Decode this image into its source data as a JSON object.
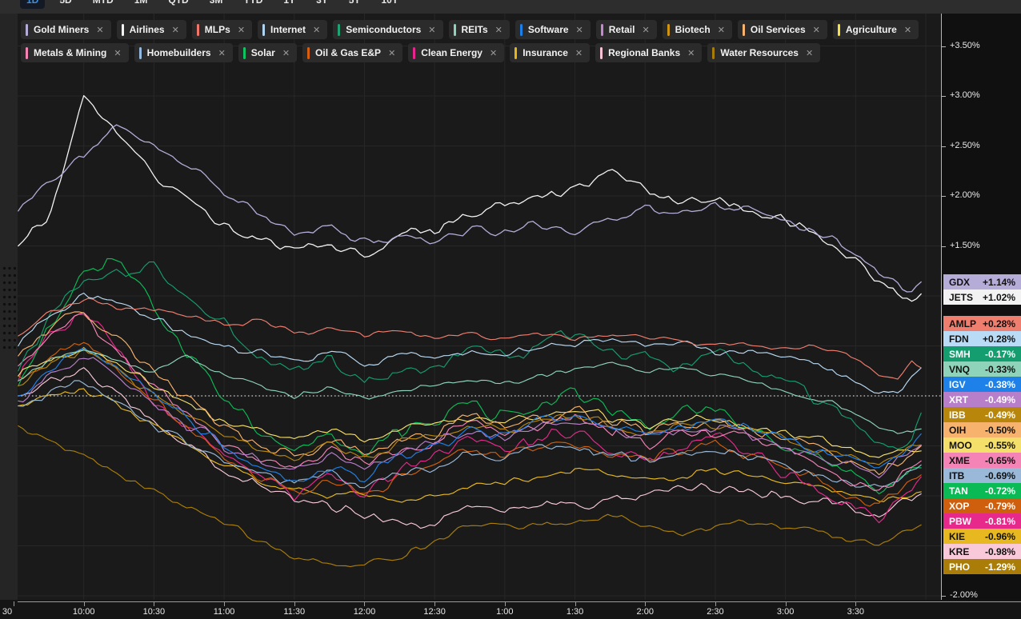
{
  "toolbar": {
    "tabs": [
      {
        "label": "1D",
        "active": true
      },
      {
        "label": "5D",
        "active": false
      },
      {
        "label": "MTD",
        "active": false
      },
      {
        "label": "1M",
        "active": false
      },
      {
        "label": "QTD",
        "active": false
      },
      {
        "label": "3M",
        "active": false
      },
      {
        "label": "YTD",
        "active": false
      },
      {
        "label": "1Y",
        "active": false
      },
      {
        "label": "3Y",
        "active": false
      },
      {
        "label": "5Y",
        "active": false
      },
      {
        "label": "10Y",
        "active": false
      }
    ]
  },
  "chips": [
    {
      "label": "Gold Miners",
      "color": "#b4abd6",
      "row": 1
    },
    {
      "label": "Airlines",
      "color": "#f5f5f5",
      "row": 1
    },
    {
      "label": "MLPs",
      "color": "#f0766b",
      "row": 1
    },
    {
      "label": "Internet",
      "color": "#aed4f2",
      "row": 1
    },
    {
      "label": "Semiconductors",
      "color": "#1ea472",
      "row": 1
    },
    {
      "label": "REITs",
      "color": "#8ed3bb",
      "row": 1
    },
    {
      "label": "Software",
      "color": "#1b7fe8",
      "row": 1
    },
    {
      "label": "Retail",
      "color": "#c587cf",
      "row": 1
    },
    {
      "label": "Biotech",
      "color": "#cf9410",
      "row": 1
    },
    {
      "label": "Oil Services",
      "color": "#f7b26d",
      "row": 1
    },
    {
      "label": "Agriculture",
      "color": "#f6e049",
      "row": 1
    },
    {
      "label": "Metals & Mining",
      "color": "#f583b4",
      "row": 2
    },
    {
      "label": "Homebuilders",
      "color": "#93bade",
      "row": 2
    },
    {
      "label": "Solar",
      "color": "#0ec561",
      "row": 2
    },
    {
      "label": "Oil & Gas E&P",
      "color": "#d95f10",
      "row": 2
    },
    {
      "label": "Clean Energy",
      "color": "#e8248e",
      "row": 2
    },
    {
      "label": "Insurance",
      "color": "#e7b518",
      "row": 2
    },
    {
      "label": "Regional Banks",
      "color": "#f9c4d6",
      "row": 2
    },
    {
      "label": "Water Resources",
      "color": "#a87c08",
      "row": 2
    }
  ],
  "chip_close_glyph": "✕",
  "chart_data": {
    "type": "line",
    "x_unit": "time of day (9:30 – 4:00)",
    "y_unit": "% change",
    "y_axis": {
      "min": -2.0,
      "max": 3.5,
      "step": 0.5,
      "grid": true,
      "zero_line": "white dotted",
      "visible_labels": [
        {
          "label": "+3.50%",
          "pct": 3.5
        },
        {
          "label": "+3.00%",
          "pct": 3.0
        },
        {
          "label": "+2.50%",
          "pct": 2.5
        },
        {
          "label": "+2.00%",
          "pct": 2.0
        },
        {
          "label": "+1.50%",
          "pct": 1.5
        },
        {
          "label": "-2.00%",
          "pct": -2.0
        }
      ]
    },
    "x_ticks": [
      {
        "label": "30",
        "m": 0,
        "lx": 9
      },
      {
        "label": "10:00",
        "m": 30
      },
      {
        "label": "10:30",
        "m": 60
      },
      {
        "label": "11:00",
        "m": 90
      },
      {
        "label": "11:30",
        "m": 120
      },
      {
        "label": "12:00",
        "m": 150
      },
      {
        "label": "12:30",
        "m": 180
      },
      {
        "label": "1:00",
        "m": 210
      },
      {
        "label": "1:30",
        "m": 240
      },
      {
        "label": "2:00",
        "m": 270
      },
      {
        "label": "2:30",
        "m": 300
      },
      {
        "label": "3:00",
        "m": 330
      },
      {
        "label": "3:30",
        "m": 360
      }
    ],
    "keypoint_minutes": [
      2,
      15,
      30,
      45,
      60,
      75,
      90,
      105,
      120,
      135,
      150,
      165,
      180,
      195,
      210,
      225,
      240,
      255,
      270,
      285,
      300,
      315,
      330,
      345,
      360,
      370,
      378,
      384,
      388
    ],
    "series": [
      {
        "symbol": "GDX",
        "change": "+1.14%",
        "pct": 1.14,
        "color": "#b5acd8",
        "text": "dark",
        "vol": 0.04,
        "values": [
          1.85,
          2.15,
          2.4,
          2.72,
          2.5,
          2.3,
          2.05,
          1.8,
          1.62,
          1.7,
          1.52,
          1.62,
          1.55,
          1.68,
          1.62,
          1.72,
          1.65,
          1.78,
          1.88,
          1.8,
          1.92,
          1.85,
          1.78,
          1.62,
          1.45,
          1.28,
          1.15,
          1.05,
          1.14
        ]
      },
      {
        "symbol": "JETS",
        "change": "+1.02%",
        "pct": 1.02,
        "color": "#f2f2f2",
        "text": "dark",
        "vol": 0.05,
        "values": [
          1.5,
          1.8,
          3.0,
          2.6,
          2.25,
          1.95,
          1.7,
          1.55,
          1.45,
          1.5,
          1.4,
          1.58,
          1.65,
          1.78,
          1.92,
          2.0,
          2.05,
          2.2,
          2.05,
          1.95,
          1.9,
          1.85,
          1.78,
          1.6,
          1.38,
          1.18,
          1.0,
          0.92,
          1.02
        ]
      },
      {
        "symbol": "AMLP",
        "change": "+0.28%",
        "pct": 0.28,
        "color": "#ef7e6f",
        "text": "dark",
        "vol": 0.025,
        "values": [
          0.6,
          0.85,
          0.95,
          0.9,
          0.85,
          0.8,
          0.72,
          0.75,
          0.62,
          0.68,
          0.6,
          0.64,
          0.6,
          0.63,
          0.58,
          0.61,
          0.56,
          0.6,
          0.62,
          0.56,
          0.52,
          0.54,
          0.48,
          0.5,
          0.35,
          0.22,
          0.18,
          0.32,
          0.28
        ]
      },
      {
        "symbol": "FDN",
        "change": "+0.28%",
        "pct": 0.28,
        "color": "#badbf5",
        "text": "dark",
        "vol": 0.035,
        "values": [
          0.5,
          0.8,
          1.0,
          0.9,
          0.75,
          0.6,
          0.5,
          0.42,
          0.35,
          0.42,
          0.33,
          0.42,
          0.38,
          0.46,
          0.42,
          0.5,
          0.52,
          0.56,
          0.5,
          0.52,
          0.45,
          0.48,
          0.38,
          0.3,
          0.15,
          0.02,
          0.05,
          0.2,
          0.28
        ]
      },
      {
        "symbol": "SMH",
        "change": "-0.17%",
        "pct": -0.17,
        "color": "#149d6f",
        "text": "light",
        "vol": 0.06,
        "values": [
          0.25,
          0.75,
          1.1,
          1.2,
          1.3,
          0.95,
          0.7,
          0.45,
          0.25,
          0.4,
          0.1,
          0.25,
          0.32,
          0.48,
          0.38,
          0.52,
          0.62,
          0.48,
          0.38,
          0.32,
          0.38,
          0.28,
          0.12,
          -0.05,
          -0.25,
          -0.45,
          -0.55,
          -0.4,
          -0.17
        ]
      },
      {
        "symbol": "VNQ",
        "change": "-0.33%",
        "pct": -0.33,
        "color": "#8ed3ba",
        "text": "dark",
        "vol": 0.025,
        "values": [
          0.15,
          0.35,
          0.45,
          0.35,
          0.25,
          0.4,
          0.2,
          0.1,
          0.0,
          0.08,
          -0.02,
          0.05,
          0.1,
          0.18,
          0.12,
          0.2,
          0.28,
          0.32,
          0.25,
          0.28,
          0.22,
          0.15,
          0.05,
          -0.05,
          -0.18,
          -0.3,
          -0.38,
          -0.35,
          -0.33
        ]
      },
      {
        "symbol": "IGV",
        "change": "-0.38%",
        "pct": -0.38,
        "color": "#1e81ea",
        "text": "light",
        "vol": 0.04,
        "values": [
          0.0,
          0.25,
          0.45,
          0.25,
          0.0,
          -0.25,
          -0.5,
          -0.7,
          -0.85,
          -0.7,
          -0.8,
          -0.6,
          -0.5,
          -0.35,
          -0.4,
          -0.25,
          -0.2,
          -0.3,
          -0.35,
          -0.3,
          -0.25,
          -0.35,
          -0.45,
          -0.55,
          -0.65,
          -0.7,
          -0.6,
          -0.48,
          -0.38
        ]
      },
      {
        "symbol": "XRT",
        "change": "-0.49%",
        "pct": -0.49,
        "color": "#b77fc9",
        "text": "light",
        "vol": 0.045,
        "values": [
          -0.05,
          0.2,
          0.4,
          0.2,
          -0.05,
          -0.3,
          -0.5,
          -0.65,
          -0.75,
          -0.6,
          -0.72,
          -0.58,
          -0.48,
          -0.35,
          -0.42,
          -0.3,
          -0.25,
          -0.35,
          -0.42,
          -0.38,
          -0.32,
          -0.4,
          -0.5,
          -0.6,
          -0.72,
          -0.78,
          -0.65,
          -0.55,
          -0.49
        ]
      },
      {
        "symbol": "IBB",
        "change": "-0.49%",
        "pct": -0.49,
        "color": "#b8860b",
        "text": "light",
        "vol": 0.04,
        "values": [
          0.1,
          0.3,
          0.45,
          0.25,
          0.0,
          -0.2,
          -0.4,
          -0.55,
          -0.65,
          -0.5,
          -0.62,
          -0.5,
          -0.42,
          -0.3,
          -0.35,
          -0.25,
          -0.2,
          -0.3,
          -0.38,
          -0.32,
          -0.28,
          -0.35,
          -0.45,
          -0.55,
          -0.65,
          -0.7,
          -0.6,
          -0.52,
          -0.49
        ]
      },
      {
        "symbol": "OIH",
        "change": "-0.50%",
        "pct": -0.5,
        "color": "#f7b26d",
        "text": "dark",
        "vol": 0.05,
        "values": [
          0.4,
          0.65,
          0.85,
          0.55,
          0.25,
          -0.05,
          -0.3,
          -0.5,
          -0.6,
          -0.45,
          -0.6,
          -0.45,
          -0.35,
          -0.2,
          -0.3,
          -0.2,
          -0.15,
          -0.25,
          -0.35,
          -0.3,
          -0.25,
          -0.35,
          -0.45,
          -0.55,
          -0.7,
          -0.78,
          -0.65,
          -0.55,
          -0.5
        ]
      },
      {
        "symbol": "MOO",
        "change": "-0.55%",
        "pct": -0.55,
        "color": "#f5df6b",
        "text": "dark",
        "vol": 0.035,
        "values": [
          0.2,
          0.35,
          0.45,
          0.3,
          0.1,
          -0.08,
          -0.25,
          -0.38,
          -0.45,
          -0.35,
          -0.45,
          -0.35,
          -0.3,
          -0.2,
          -0.25,
          -0.18,
          -0.15,
          -0.22,
          -0.28,
          -0.25,
          -0.22,
          -0.3,
          -0.38,
          -0.45,
          -0.55,
          -0.62,
          -0.58,
          -0.55,
          -0.55
        ]
      },
      {
        "symbol": "XME",
        "change": "-0.65%",
        "pct": -0.65,
        "color": "#f584b6",
        "text": "dark",
        "vol": 0.055,
        "values": [
          0.3,
          0.6,
          0.8,
          0.45,
          0.1,
          -0.2,
          -0.45,
          -0.6,
          -0.7,
          -0.55,
          -0.7,
          -0.55,
          -0.45,
          -0.3,
          -0.4,
          -0.3,
          -0.25,
          -0.35,
          -0.45,
          -0.4,
          -0.35,
          -0.45,
          -0.55,
          -0.7,
          -0.9,
          -1.0,
          -0.85,
          -0.72,
          -0.65
        ]
      },
      {
        "symbol": "ITB",
        "change": "-0.69%",
        "pct": -0.69,
        "color": "#9ab9d8",
        "text": "dark",
        "vol": 0.04,
        "values": [
          -0.1,
          0.05,
          0.15,
          -0.05,
          -0.3,
          -0.5,
          -0.65,
          -0.75,
          -0.85,
          -0.75,
          -0.9,
          -0.8,
          -0.7,
          -0.6,
          -0.65,
          -0.55,
          -0.5,
          -0.6,
          -0.65,
          -0.6,
          -0.55,
          -0.6,
          -0.7,
          -0.8,
          -0.9,
          -0.95,
          -0.85,
          -0.75,
          -0.69
        ]
      },
      {
        "symbol": "TAN",
        "change": "-0.72%",
        "pct": -0.72,
        "color": "#0abb55",
        "text": "light",
        "vol": 0.065,
        "values": [
          0.1,
          0.7,
          1.2,
          1.4,
          0.9,
          0.4,
          -0.05,
          -0.35,
          -0.55,
          -0.35,
          -0.55,
          -0.35,
          -0.25,
          -0.1,
          -0.2,
          -0.05,
          0.0,
          -0.15,
          -0.25,
          -0.2,
          -0.15,
          -0.3,
          -0.45,
          -0.6,
          -0.8,
          -0.95,
          -0.85,
          -0.75,
          -0.72
        ]
      },
      {
        "symbol": "XOP",
        "change": "-0.79%",
        "pct": -0.79,
        "color": "#cf5f0d",
        "text": "light",
        "vol": 0.05,
        "values": [
          0.2,
          0.4,
          0.55,
          0.25,
          -0.05,
          -0.35,
          -0.6,
          -0.8,
          -0.95,
          -0.85,
          -1.0,
          -0.85,
          -0.7,
          -0.55,
          -0.6,
          -0.5,
          -0.45,
          -0.55,
          -0.6,
          -0.55,
          -0.5,
          -0.6,
          -0.7,
          -0.85,
          -1.0,
          -1.1,
          -0.98,
          -0.88,
          -0.79
        ]
      },
      {
        "symbol": "PBW",
        "change": "-0.81%",
        "pct": -0.81,
        "color": "#e6298b",
        "text": "light",
        "vol": 0.06,
        "values": [
          0.15,
          0.55,
          0.85,
          0.4,
          0.0,
          -0.35,
          -0.6,
          -0.8,
          -0.95,
          -0.8,
          -0.95,
          -0.75,
          -0.6,
          -0.45,
          -0.55,
          -0.4,
          -0.35,
          -0.5,
          -0.6,
          -0.5,
          -0.45,
          -0.6,
          -0.75,
          -0.95,
          -1.15,
          -1.25,
          -1.05,
          -0.9,
          -0.81
        ]
      },
      {
        "symbol": "KIE",
        "change": "-0.96%",
        "pct": -0.96,
        "color": "#e7b81f",
        "text": "dark",
        "vol": 0.03,
        "values": [
          -0.1,
          0.0,
          0.05,
          -0.1,
          -0.3,
          -0.5,
          -0.7,
          -0.85,
          -0.95,
          -1.0,
          -0.95,
          -1.05,
          -1.0,
          -0.9,
          -0.85,
          -0.8,
          -0.75,
          -0.8,
          -0.85,
          -0.8,
          -0.75,
          -0.8,
          -0.85,
          -0.9,
          -1.0,
          -1.05,
          -1.0,
          -0.98,
          -0.96
        ]
      },
      {
        "symbol": "KRE",
        "change": "-0.98%",
        "pct": -0.98,
        "color": "#f9c9da",
        "text": "dark",
        "vol": 0.045,
        "values": [
          0.0,
          0.15,
          0.25,
          0.0,
          -0.25,
          -0.5,
          -0.75,
          -0.9,
          -1.0,
          -1.1,
          -1.2,
          -1.3,
          -1.25,
          -1.1,
          -1.15,
          -1.05,
          -1.1,
          -1.0,
          -1.05,
          -0.95,
          -0.9,
          -0.95,
          -1.0,
          -1.05,
          -1.15,
          -1.2,
          -1.1,
          -1.02,
          -0.98
        ]
      },
      {
        "symbol": "PHO",
        "change": "-1.29%",
        "pct": -1.29,
        "color": "#aa7d08",
        "text": "light",
        "vol": 0.03,
        "values": [
          -0.3,
          -0.45,
          -0.6,
          -0.8,
          -0.95,
          -1.1,
          -1.25,
          -1.45,
          -1.6,
          -1.68,
          -1.72,
          -1.6,
          -1.45,
          -1.3,
          -1.28,
          -1.32,
          -1.25,
          -1.2,
          -1.28,
          -1.35,
          -1.3,
          -1.25,
          -1.3,
          -1.38,
          -1.45,
          -1.5,
          -1.42,
          -1.33,
          -1.29
        ]
      }
    ]
  }
}
